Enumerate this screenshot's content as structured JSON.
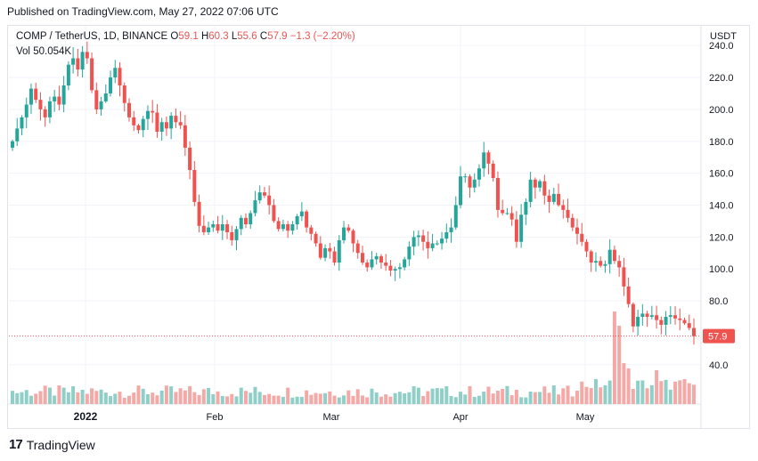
{
  "header": {
    "published": "Published on TradingView.com, May 27, 2022 07:06 UTC"
  },
  "legend": {
    "symbol": "COMP / TetherUS, 1D, BINANCE",
    "o_label": "O",
    "o_value": "59.1",
    "h_label": "H",
    "h_value": "60.3",
    "l_label": "L",
    "l_value": "55.6",
    "c_label": "C",
    "c_value": "57.9",
    "change": "−1.3 (−2.20%)",
    "vol_label": "Vol",
    "vol_value": "50.054K"
  },
  "axis": {
    "currency": "USDT",
    "price_ticks": [
      "240.0",
      "220.0",
      "200.0",
      "180.0",
      "160.0",
      "140.0",
      "120.0",
      "100.0",
      "80.0",
      "40.0"
    ],
    "time_ticks": [
      "2022",
      "Feb",
      "Mar",
      "Apr",
      "May"
    ],
    "last_price_label": "57.9"
  },
  "footer": {
    "brand": "TradingView",
    "logo": "17"
  },
  "colors": {
    "up": "#26a69a",
    "down": "#ef5350",
    "up_vol": "#8fcfc8",
    "down_vol": "#f5a9a7",
    "grid": "#f0f3fa"
  },
  "chart_data": {
    "type": "candlestick",
    "symbol": "COMP/USDT",
    "interval": "1D",
    "ylim": [
      35,
      250
    ],
    "closes": [
      180,
      188,
      195,
      203,
      213,
      206,
      200,
      195,
      205,
      208,
      203,
      215,
      228,
      232,
      225,
      236,
      232,
      212,
      200,
      205,
      210,
      220,
      226,
      215,
      204,
      195,
      190,
      187,
      194,
      199,
      198,
      186,
      192,
      188,
      196,
      192,
      190,
      176,
      162,
      142,
      127,
      123,
      126,
      128,
      124,
      128,
      123,
      118,
      125,
      132,
      128,
      135,
      143,
      148,
      146,
      140,
      130,
      125,
      128,
      124,
      128,
      133,
      136,
      126,
      122,
      116,
      107,
      113,
      111,
      104,
      118,
      126,
      124,
      116,
      110,
      104,
      101,
      106,
      108,
      104,
      102,
      99,
      100,
      101,
      106,
      114,
      120,
      121,
      117,
      113,
      116,
      116,
      119,
      123,
      126,
      140,
      158,
      158,
      151,
      156,
      163,
      173,
      166,
      157,
      137,
      135,
      135,
      131,
      117,
      134,
      142,
      156,
      151,
      155,
      146,
      142,
      147,
      140,
      137,
      132,
      126,
      122,
      117,
      111,
      104,
      105,
      102,
      103,
      112,
      105,
      101,
      89,
      78,
      64,
      70,
      72,
      70,
      71,
      68,
      65,
      70,
      71,
      69,
      68,
      66,
      63,
      57.9
    ],
    "volume_scale": "relative",
    "last": {
      "open": 59.1,
      "high": 60.3,
      "low": 55.6,
      "close": 57.9,
      "volume": "50.054K",
      "change": -1.3,
      "change_pct": -2.2
    }
  }
}
